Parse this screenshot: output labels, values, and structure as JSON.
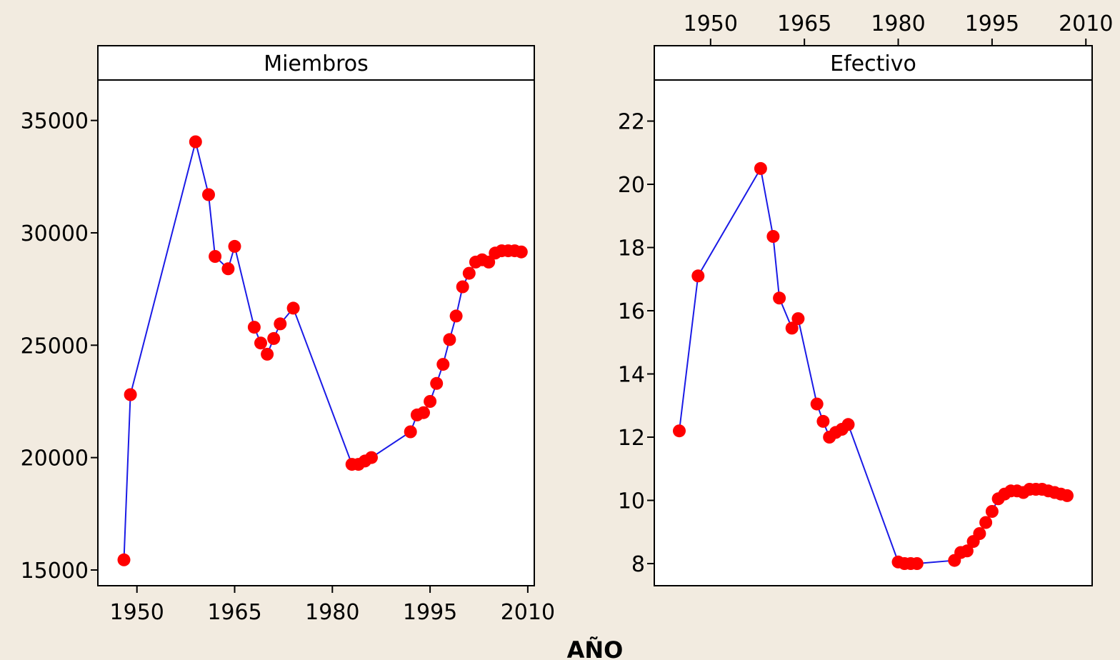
{
  "figure": {
    "xlabel": "AÑO",
    "colors": {
      "background": "#f2ebe0",
      "plot_background": "#ffffff",
      "line": "#1a1ae6",
      "marker": "#ff0000",
      "axis": "#000000"
    }
  },
  "chart_data": [
    {
      "type": "line",
      "title": "Miembros",
      "x_tick_position": "bottom",
      "xlim": [
        1944,
        2011
      ],
      "ylim": [
        14300,
        36800
      ],
      "x_ticks": [
        1950,
        1965,
        1980,
        1995,
        2010
      ],
      "y_ticks": [
        15000,
        20000,
        25000,
        30000,
        35000
      ],
      "grid": false,
      "x": [
        1948,
        1949,
        1959,
        1961,
        1962,
        1964,
        1965,
        1968,
        1969,
        1970,
        1971,
        1972,
        1974,
        1983,
        1984,
        1985,
        1986,
        1992,
        1993,
        1994,
        1995,
        1996,
        1997,
        1998,
        1999,
        2000,
        2001,
        2002,
        2003,
        2004,
        2005,
        2006,
        2007,
        2008,
        2009
      ],
      "y": [
        15450,
        22800,
        34050,
        31700,
        28950,
        28400,
        29400,
        25800,
        25100,
        24600,
        25300,
        25950,
        26650,
        19700,
        19700,
        19850,
        20000,
        21150,
        21900,
        22000,
        22500,
        23300,
        24150,
        25250,
        26300,
        27600,
        28200,
        28700,
        28800,
        28700,
        29100,
        29200,
        29200,
        29200,
        29150
      ]
    },
    {
      "type": "line",
      "title": "Efectivo",
      "x_tick_position": "top",
      "xlim": [
        1941,
        2011
      ],
      "ylim": [
        7.3,
        23.3
      ],
      "x_ticks": [
        1950,
        1965,
        1980,
        1995,
        2010
      ],
      "y_ticks": [
        8,
        10,
        12,
        14,
        16,
        18,
        20,
        22
      ],
      "grid": false,
      "x": [
        1945,
        1948,
        1958,
        1960,
        1961,
        1963,
        1964,
        1967,
        1968,
        1969,
        1970,
        1971,
        1972,
        1980,
        1981,
        1982,
        1983,
        1989,
        1990,
        1991,
        1992,
        1993,
        1994,
        1995,
        1996,
        1997,
        1998,
        1999,
        2000,
        2001,
        2002,
        2003,
        2004,
        2005,
        2006,
        2007
      ],
      "y": [
        12.2,
        17.1,
        20.5,
        18.35,
        16.4,
        15.45,
        15.75,
        13.05,
        12.5,
        12.0,
        12.15,
        12.25,
        12.4,
        8.05,
        8.0,
        8.0,
        8.0,
        8.1,
        8.35,
        8.4,
        8.7,
        8.95,
        9.3,
        9.65,
        10.05,
        10.2,
        10.3,
        10.3,
        10.25,
        10.35,
        10.35,
        10.35,
        10.3,
        10.25,
        10.2,
        10.15
      ]
    }
  ]
}
